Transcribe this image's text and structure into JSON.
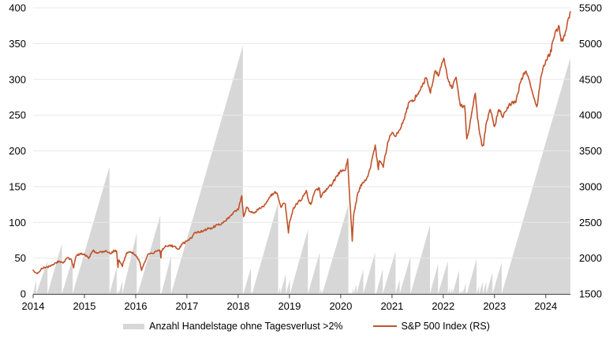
{
  "colors": {
    "background": "#ffffff",
    "area": "#d7d7d7",
    "line": "#c0532a",
    "grid": "#e8e8e8",
    "axis": "#404040",
    "text": "#000000"
  },
  "chart_data": {
    "type": "area",
    "subtype": "combo-area-line",
    "title": "",
    "grid": true,
    "legend_position": "bottom-center",
    "legend": [
      {
        "label": "Anzahl Handelstage ohne Tagesverlust >2%",
        "type": "area",
        "color": "#d7d7d7",
        "axis": "left"
      },
      {
        "label": "S&P 500 Index (RS)",
        "type": "line",
        "color": "#c0532a",
        "axis": "right"
      }
    ],
    "x_axis": {
      "min": 2014,
      "max": 2024.48,
      "tick_labels": [
        "2014",
        "2015",
        "2016",
        "2017",
        "2018",
        "2019",
        "2020",
        "2021",
        "2022",
        "2023",
        "2024"
      ],
      "tick_values": [
        2014,
        2015,
        2016,
        2017,
        2018,
        2019,
        2020,
        2021,
        2022,
        2023,
        2024
      ]
    },
    "left_axis": {
      "min": 0,
      "max": 400,
      "step": 50,
      "tick_labels": [
        "0",
        "50",
        "100",
        "150",
        "200",
        "250",
        "300",
        "350",
        "400"
      ]
    },
    "right_axis": {
      "min": 1500,
      "max": 5500,
      "step": 500,
      "tick_labels": [
        "1500",
        "2000",
        "2500",
        "3000",
        "3500",
        "4000",
        "4500",
        "5000",
        "5500"
      ]
    },
    "area_series": {
      "name": "Anzahl Handelstage ohne Tagesverlust >2%",
      "axis": "left",
      "note": "sawtooth: each segment is [start_year, reset_year, peak_trading_days]; value rises linearly 0->peak then resets to 0",
      "segments": [
        [
          2014.0,
          2014.06,
          20
        ],
        [
          2014.06,
          2014.28,
          46
        ],
        [
          2014.28,
          2014.56,
          70
        ],
        [
          2014.56,
          2014.77,
          49
        ],
        [
          2014.77,
          2015.49,
          178
        ],
        [
          2015.49,
          2015.63,
          37
        ],
        [
          2015.63,
          2015.645,
          3
        ],
        [
          2015.645,
          2015.67,
          6
        ],
        [
          2015.67,
          2015.74,
          18
        ],
        [
          2015.74,
          2016.02,
          85
        ],
        [
          2016.02,
          2016.04,
          4
        ],
        [
          2016.04,
          2016.48,
          110
        ],
        [
          2016.48,
          2016.5,
          2
        ],
        [
          2016.5,
          2016.69,
          53
        ],
        [
          2016.69,
          2018.09,
          347
        ],
        [
          2018.09,
          2018.1,
          3
        ],
        [
          2018.1,
          2018.25,
          37
        ],
        [
          2018.25,
          2018.27,
          4
        ],
        [
          2018.27,
          2018.78,
          128
        ],
        [
          2018.78,
          2018.82,
          10
        ],
        [
          2018.82,
          2018.93,
          28
        ],
        [
          2018.93,
          2019.01,
          20
        ],
        [
          2019.01,
          2019.36,
          90
        ],
        [
          2019.36,
          2019.59,
          58
        ],
        [
          2019.59,
          2019.62,
          7
        ],
        [
          2019.62,
          2019.64,
          6
        ],
        [
          2019.64,
          2020.15,
          125
        ],
        [
          2020.15,
          2020.17,
          2
        ],
        [
          2020.17,
          2020.19,
          3
        ],
        [
          2020.19,
          2020.22,
          2
        ],
        [
          2020.22,
          2020.25,
          9
        ],
        [
          2020.25,
          2020.31,
          13
        ],
        [
          2020.31,
          2020.44,
          35
        ],
        [
          2020.44,
          2020.67,
          58
        ],
        [
          2020.67,
          2020.69,
          2
        ],
        [
          2020.69,
          2020.82,
          35
        ],
        [
          2020.82,
          2021.07,
          60
        ],
        [
          2021.07,
          2021.15,
          20
        ],
        [
          2021.15,
          2021.36,
          52
        ],
        [
          2021.36,
          2021.74,
          96
        ],
        [
          2021.74,
          2021.9,
          42
        ],
        [
          2021.9,
          2022.09,
          46
        ],
        [
          2022.09,
          2022.13,
          9
        ],
        [
          2022.13,
          2022.18,
          8
        ],
        [
          2022.18,
          2022.31,
          33
        ],
        [
          2022.31,
          2022.35,
          4
        ],
        [
          2022.35,
          2022.38,
          6
        ],
        [
          2022.38,
          2022.44,
          15
        ],
        [
          2022.44,
          2022.46,
          3
        ],
        [
          2022.46,
          2022.65,
          49
        ],
        [
          2022.65,
          2022.7,
          11
        ],
        [
          2022.7,
          2022.77,
          17
        ],
        [
          2022.77,
          2022.84,
          17
        ],
        [
          2022.84,
          2022.96,
          30
        ],
        [
          2022.96,
          2023.14,
          44
        ],
        [
          2023.14,
          2024.48,
          330
        ]
      ]
    },
    "line_series": {
      "name": "S&P 500 Index (RS)",
      "axis": "right",
      "points": [
        [
          2014.0,
          1832
        ],
        [
          2014.083,
          1783
        ],
        [
          2014.167,
          1859
        ],
        [
          2014.25,
          1872
        ],
        [
          2014.333,
          1884
        ],
        [
          2014.417,
          1924
        ],
        [
          2014.5,
          1960
        ],
        [
          2014.583,
          1931
        ],
        [
          2014.667,
          2003
        ],
        [
          2014.75,
          1972
        ],
        [
          2014.79,
          1862
        ],
        [
          2014.833,
          2018
        ],
        [
          2014.917,
          2068
        ],
        [
          2015.0,
          2059
        ],
        [
          2015.083,
          1995
        ],
        [
          2015.167,
          2105
        ],
        [
          2015.25,
          2068
        ],
        [
          2015.333,
          2086
        ],
        [
          2015.417,
          2107
        ],
        [
          2015.5,
          2063
        ],
        [
          2015.583,
          2104
        ],
        [
          2015.63,
          2096
        ],
        [
          2015.655,
          1868
        ],
        [
          2015.667,
          1972
        ],
        [
          2015.74,
          1882
        ],
        [
          2015.75,
          1920
        ],
        [
          2015.833,
          2079
        ],
        [
          2015.917,
          2080
        ],
        [
          2016.0,
          2044
        ],
        [
          2016.083,
          1940
        ],
        [
          2016.115,
          1829
        ],
        [
          2016.167,
          1932
        ],
        [
          2016.25,
          2060
        ],
        [
          2016.333,
          2065
        ],
        [
          2016.417,
          2097
        ],
        [
          2016.47,
          2113
        ],
        [
          2016.493,
          2001
        ],
        [
          2016.5,
          2099
        ],
        [
          2016.583,
          2174
        ],
        [
          2016.667,
          2171
        ],
        [
          2016.75,
          2168
        ],
        [
          2016.833,
          2126
        ],
        [
          2016.917,
          2199
        ],
        [
          2017.0,
          2239
        ],
        [
          2017.083,
          2279
        ],
        [
          2017.167,
          2364
        ],
        [
          2017.25,
          2363
        ],
        [
          2017.333,
          2384
        ],
        [
          2017.417,
          2412
        ],
        [
          2017.5,
          2423
        ],
        [
          2017.583,
          2470
        ],
        [
          2017.667,
          2472
        ],
        [
          2017.75,
          2519
        ],
        [
          2017.833,
          2575
        ],
        [
          2017.917,
          2648
        ],
        [
          2018.0,
          2674
        ],
        [
          2018.07,
          2873
        ],
        [
          2018.105,
          2581
        ],
        [
          2018.167,
          2714
        ],
        [
          2018.25,
          2641
        ],
        [
          2018.333,
          2648
        ],
        [
          2018.417,
          2705
        ],
        [
          2018.5,
          2718
        ],
        [
          2018.583,
          2816
        ],
        [
          2018.667,
          2902
        ],
        [
          2018.72,
          2931
        ],
        [
          2018.75,
          2914
        ],
        [
          2018.833,
          2712
        ],
        [
          2018.87,
          2760
        ],
        [
          2018.917,
          2760
        ],
        [
          2018.98,
          2351
        ],
        [
          2019.0,
          2507
        ],
        [
          2019.083,
          2704
        ],
        [
          2019.167,
          2784
        ],
        [
          2019.25,
          2834
        ],
        [
          2019.33,
          2946
        ],
        [
          2019.37,
          2812
        ],
        [
          2019.417,
          2752
        ],
        [
          2019.5,
          2942
        ],
        [
          2019.583,
          2980
        ],
        [
          2019.61,
          2847
        ],
        [
          2019.667,
          2926
        ],
        [
          2019.75,
          2977
        ],
        [
          2019.833,
          3038
        ],
        [
          2019.917,
          3141
        ],
        [
          2020.0,
          3231
        ],
        [
          2020.083,
          3226
        ],
        [
          2020.135,
          3386
        ],
        [
          2020.167,
          2954
        ],
        [
          2020.225,
          2237
        ],
        [
          2020.25,
          2585
        ],
        [
          2020.333,
          2912
        ],
        [
          2020.417,
          3044
        ],
        [
          2020.5,
          3100
        ],
        [
          2020.583,
          3271
        ],
        [
          2020.672,
          3581
        ],
        [
          2020.735,
          3237
        ],
        [
          2020.75,
          3363
        ],
        [
          2020.83,
          3270
        ],
        [
          2020.917,
          3622
        ],
        [
          2021.0,
          3756
        ],
        [
          2021.083,
          3714
        ],
        [
          2021.167,
          3811
        ],
        [
          2021.25,
          3973
        ],
        [
          2021.333,
          4181
        ],
        [
          2021.417,
          4204
        ],
        [
          2021.5,
          4298
        ],
        [
          2021.583,
          4395
        ],
        [
          2021.667,
          4523
        ],
        [
          2021.75,
          4308
        ],
        [
          2021.833,
          4605
        ],
        [
          2021.917,
          4567
        ],
        [
          2022.0,
          4766
        ],
        [
          2022.01,
          4797
        ],
        [
          2022.083,
          4516
        ],
        [
          2022.167,
          4374
        ],
        [
          2022.25,
          4530
        ],
        [
          2022.333,
          4132
        ],
        [
          2022.417,
          4132
        ],
        [
          2022.46,
          3667
        ],
        [
          2022.5,
          3785
        ],
        [
          2022.583,
          4130
        ],
        [
          2022.625,
          4305
        ],
        [
          2022.667,
          3955
        ],
        [
          2022.75,
          3586
        ],
        [
          2022.785,
          3577
        ],
        [
          2022.833,
          3872
        ],
        [
          2022.917,
          4080
        ],
        [
          2023.0,
          3840
        ],
        [
          2023.083,
          4077
        ],
        [
          2023.167,
          3970
        ],
        [
          2023.25,
          4109
        ],
        [
          2023.333,
          4169
        ],
        [
          2023.417,
          4180
        ],
        [
          2023.5,
          4450
        ],
        [
          2023.58,
          4589
        ],
        [
          2023.6,
          4607
        ],
        [
          2023.667,
          4508
        ],
        [
          2023.75,
          4288
        ],
        [
          2023.825,
          4117
        ],
        [
          2023.917,
          4568
        ],
        [
          2024.0,
          4770
        ],
        [
          2024.083,
          4846
        ],
        [
          2024.167,
          5096
        ],
        [
          2024.25,
          5254
        ],
        [
          2024.3,
          5035
        ],
        [
          2024.333,
          5036
        ],
        [
          2024.417,
          5278
        ],
        [
          2024.46,
          5360
        ],
        [
          2024.48,
          5445
        ]
      ]
    }
  }
}
